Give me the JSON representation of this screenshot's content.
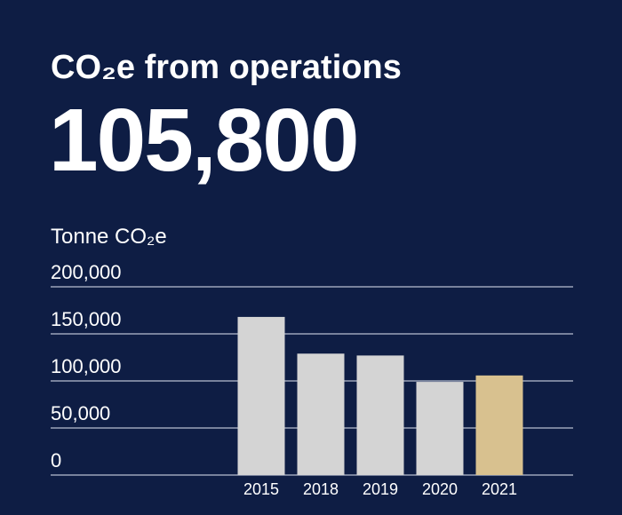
{
  "chart_data": {
    "type": "bar",
    "title": "CO₂e from operations",
    "headline": "105,800",
    "y_axis_label": "Tonne CO₂e",
    "categories": [
      "2015",
      "2018",
      "2019",
      "2020",
      "2021"
    ],
    "values": [
      168000,
      129000,
      127000,
      99000,
      105800
    ],
    "colors": [
      "#d4d4d4",
      "#d4d4d4",
      "#d4d4d4",
      "#d4d4d4",
      "#d8c18f"
    ],
    "ylim": [
      0,
      200000
    ],
    "yticks": [
      0,
      {
        "value": 50000,
        "label": "50,000"
      },
      {
        "value": 100000,
        "label": "100,000"
      },
      {
        "value": 150000,
        "label": "150,000"
      },
      {
        "value": 200000,
        "label": "200,000"
      }
    ],
    "grid": true
  }
}
